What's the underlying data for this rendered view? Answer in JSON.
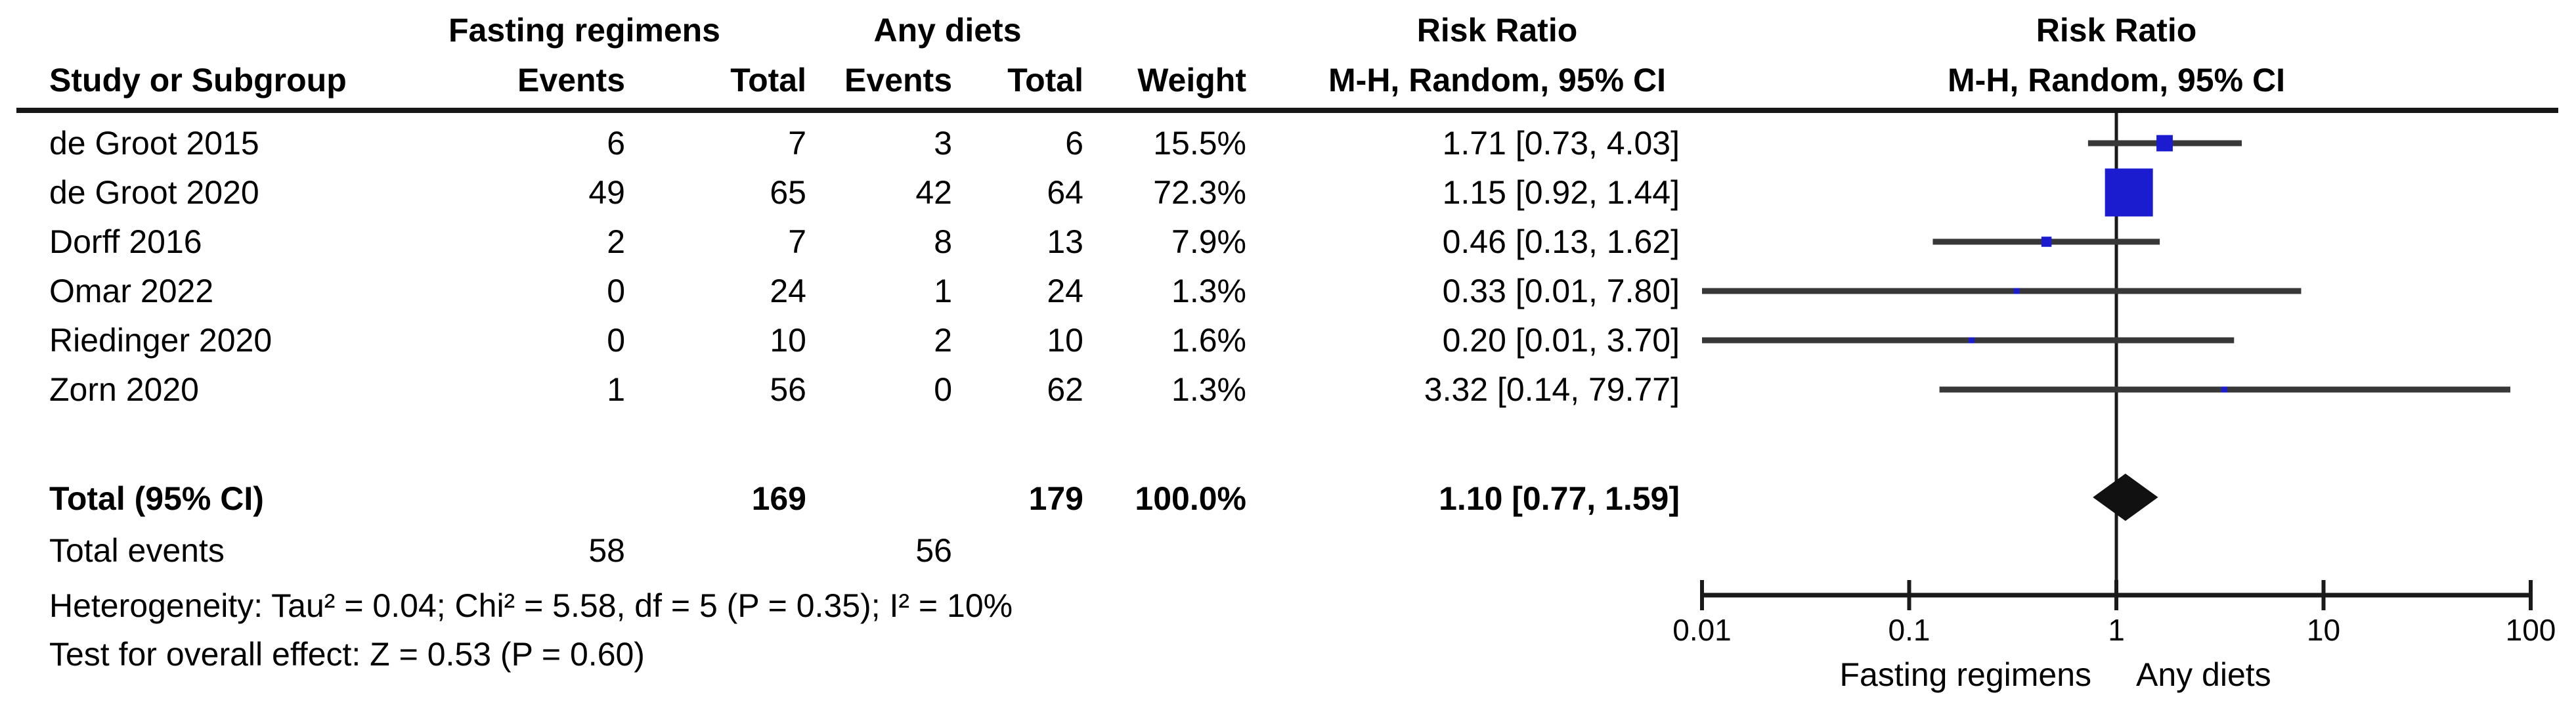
{
  "header": {
    "study_col": "Study or Subgroup",
    "group1": "Fasting regimens",
    "group2": "Any diets",
    "events1": "Events",
    "total1": "Total",
    "events2": "Events",
    "total2": "Total",
    "weight": "Weight",
    "rr_col_title": "Risk Ratio",
    "rr_col_subtitle": "M-H, Random, 95% CI",
    "plot_col_title": "Risk Ratio",
    "plot_col_subtitle": "M-H, Random, 95% CI"
  },
  "rows": [
    {
      "study": "de Groot 2015",
      "e1": "6",
      "t1": "7",
      "e2": "3",
      "t2": "6",
      "weight": "15.5%",
      "rr": "1.71 [0.73, 4.03]"
    },
    {
      "study": "de Groot 2020",
      "e1": "49",
      "t1": "65",
      "e2": "42",
      "t2": "64",
      "weight": "72.3%",
      "rr": "1.15 [0.92, 1.44]"
    },
    {
      "study": "Dorff 2016",
      "e1": "2",
      "t1": "7",
      "e2": "8",
      "t2": "13",
      "weight": "7.9%",
      "rr": "0.46 [0.13, 1.62]"
    },
    {
      "study": "Omar 2022",
      "e1": "0",
      "t1": "24",
      "e2": "1",
      "t2": "24",
      "weight": "1.3%",
      "rr": "0.33 [0.01, 7.80]"
    },
    {
      "study": "Riedinger 2020",
      "e1": "0",
      "t1": "10",
      "e2": "2",
      "t2": "10",
      "weight": "1.6%",
      "rr": "0.20 [0.01, 3.70]"
    },
    {
      "study": "Zorn 2020",
      "e1": "1",
      "t1": "56",
      "e2": "0",
      "t2": "62",
      "weight": "1.3%",
      "rr": "3.32 [0.14, 79.77]"
    }
  ],
  "total_row": {
    "label": "Total (95% CI)",
    "t1": "169",
    "t2": "179",
    "weight": "100.0%",
    "rr": "1.10 [0.77, 1.59]"
  },
  "total_events": {
    "label": "Total events",
    "e1": "58",
    "e2": "56"
  },
  "footnotes": {
    "heterogeneity": "Heterogeneity: Tau² = 0.04; Chi² = 5.58, df = 5 (P = 0.35); I² = 10%",
    "overall_effect": "Test for overall effect: Z = 0.53 (P = 0.60)"
  },
  "axis_labels": {
    "favours_left": "Fasting regimens",
    "favours_right": "Any diets"
  },
  "chart_data": {
    "type": "forest",
    "title": "Risk Ratio",
    "subtitle": "M-H, Random, 95% CI",
    "x_scale": "log10",
    "x_range": [
      0.01,
      100
    ],
    "x_ticks": [
      0.01,
      0.1,
      1,
      10,
      100
    ],
    "reference_line": 1,
    "favours_left": "Fasting regimens",
    "favours_right": "Any diets",
    "studies": [
      {
        "name": "de Groot 2015",
        "rr": 1.71,
        "lo": 0.73,
        "hi": 4.03,
        "weight": 15.5
      },
      {
        "name": "de Groot 2020",
        "rr": 1.15,
        "lo": 0.92,
        "hi": 1.44,
        "weight": 72.3
      },
      {
        "name": "Dorff 2016",
        "rr": 0.46,
        "lo": 0.13,
        "hi": 1.62,
        "weight": 7.9
      },
      {
        "name": "Omar 2022",
        "rr": 0.33,
        "lo": 0.01,
        "hi": 7.8,
        "weight": 1.3
      },
      {
        "name": "Riedinger 2020",
        "rr": 0.2,
        "lo": 0.01,
        "hi": 3.7,
        "weight": 1.6
      },
      {
        "name": "Zorn 2020",
        "rr": 3.32,
        "lo": 0.14,
        "hi": 79.77,
        "weight": 1.3
      }
    ],
    "total": {
      "rr": 1.1,
      "lo": 0.77,
      "hi": 1.59,
      "weight": 100.0
    },
    "colors": {
      "square": "#1b1bd0",
      "ci_line": "#383838",
      "diamond": "#111111",
      "axis": "#1a1a1a",
      "rule": "#161616"
    }
  }
}
